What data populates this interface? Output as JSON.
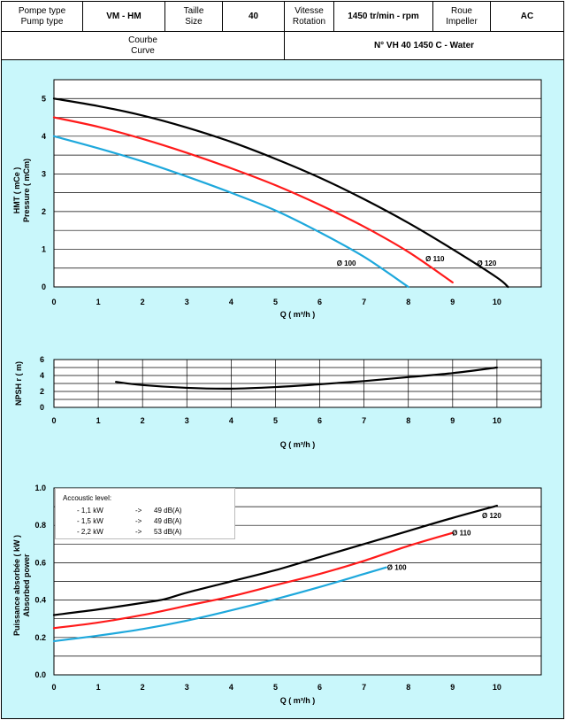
{
  "header": {
    "pump_type_label_fr": "Pompe type",
    "pump_type_label_en": "Pump type",
    "pump_type_value": "VM - HM",
    "size_label_fr": "Taille",
    "size_label_en": "Size",
    "size_value": "40",
    "rotation_label_fr": "Vitesse",
    "rotation_label_en": "Rotation",
    "rotation_value": "1450 tr/min - rpm",
    "impeller_label_fr": "Roue",
    "impeller_label_en": "Impeller",
    "impeller_value": "AC",
    "curve_label_fr": "Courbe",
    "curve_label_en": "Curve",
    "curve_value": "N° VH 40 1450 C - Water"
  },
  "colors": {
    "panel_bg": "#c9f7fb",
    "d120": "#000000",
    "d110": "#ff1a1a",
    "d100": "#1ea8dc"
  },
  "legend": {
    "title": "Accoustic level:",
    "rows": [
      {
        "power": "- 1,1 kW",
        "arrow": "->",
        "level": "49 dB(A)"
      },
      {
        "power": "- 1,5 kW",
        "arrow": "->",
        "level": "49 dB(A)"
      },
      {
        "power": "- 2,2 kW",
        "arrow": "->",
        "level": "53 dB(A)"
      }
    ]
  },
  "chart_data": [
    {
      "type": "line",
      "ylabel_line1": "HMT ( mCe )",
      "ylabel_line2": "Pressure ( mCm)",
      "xlabel": "Q ( m³/h )",
      "xlim": [
        0,
        11
      ],
      "ylim": [
        0,
        5.5
      ],
      "xticks": [
        0,
        1,
        2,
        3,
        4,
        5,
        6,
        7,
        8,
        9,
        10
      ],
      "yticks": [
        0,
        1,
        2,
        3,
        4,
        5
      ],
      "grid": "horizontal",
      "series": [
        {
          "name": "Ø 120",
          "color": "#000000",
          "x": [
            0,
            1,
            2,
            3,
            4,
            5,
            6,
            7,
            8,
            9,
            10,
            10.25
          ],
          "y": [
            5.0,
            4.8,
            4.55,
            4.23,
            3.85,
            3.4,
            2.9,
            2.33,
            1.7,
            1.0,
            0.25,
            0.0
          ]
        },
        {
          "name": "Ø 110",
          "color": "#ff1a1a",
          "x": [
            0,
            1,
            2,
            3,
            4,
            5,
            6,
            7,
            8,
            9
          ],
          "y": [
            4.5,
            4.25,
            3.93,
            3.56,
            3.15,
            2.7,
            2.18,
            1.6,
            0.93,
            0.12
          ]
        },
        {
          "name": "Ø 100",
          "color": "#1ea8dc",
          "x": [
            0,
            1,
            2,
            3,
            4,
            5,
            6,
            7,
            8
          ],
          "y": [
            4.0,
            3.68,
            3.33,
            2.93,
            2.5,
            2.03,
            1.45,
            0.8,
            0.0
          ]
        }
      ]
    },
    {
      "type": "line",
      "ylabel": "NPSH r ( m)",
      "xlabel": "Q ( m³/h )",
      "xlim": [
        0,
        11
      ],
      "ylim": [
        0,
        6
      ],
      "xticks": [
        0,
        1,
        2,
        3,
        4,
        5,
        6,
        7,
        8,
        9,
        10
      ],
      "yticks": [
        0,
        2,
        4,
        6
      ],
      "grid": "both",
      "series": [
        {
          "color": "#000000",
          "x": [
            1.4,
            2,
            3,
            4,
            5,
            6,
            7,
            8,
            9,
            10
          ],
          "y": [
            3.2,
            2.8,
            2.45,
            2.35,
            2.55,
            2.9,
            3.3,
            3.8,
            4.3,
            5.0
          ]
        }
      ]
    },
    {
      "type": "line",
      "ylabel_line1": "Puissance absorbée ( kW )",
      "ylabel_line2": "Absorbed power",
      "xlabel": "Q ( m³/h )",
      "xlim": [
        0,
        11
      ],
      "ylim": [
        0,
        1.0
      ],
      "xticks": [
        0,
        1,
        2,
        3,
        4,
        5,
        6,
        7,
        8,
        9,
        10
      ],
      "yticks": [
        "0.0",
        "0.2",
        "0.4",
        "0.6",
        "0.8",
        "1.0"
      ],
      "grid": "horizontal",
      "series": [
        {
          "name": "Ø 120",
          "color": "#000000",
          "x": [
            0,
            1,
            2,
            2.5,
            3,
            4,
            5,
            6,
            7,
            8,
            9,
            10
          ],
          "y": [
            0.32,
            0.35,
            0.385,
            0.405,
            0.44,
            0.5,
            0.56,
            0.63,
            0.7,
            0.77,
            0.84,
            0.905
          ]
        },
        {
          "name": "Ø 110",
          "color": "#ff1a1a",
          "x": [
            0,
            1,
            2,
            3,
            4,
            5,
            6,
            7,
            8,
            9
          ],
          "y": [
            0.25,
            0.28,
            0.32,
            0.37,
            0.42,
            0.48,
            0.54,
            0.61,
            0.69,
            0.76
          ]
        },
        {
          "name": "Ø 100",
          "color": "#1ea8dc",
          "x": [
            0,
            1,
            2,
            3,
            4,
            5,
            6,
            7,
            7.5
          ],
          "y": [
            0.18,
            0.21,
            0.245,
            0.29,
            0.345,
            0.405,
            0.47,
            0.54,
            0.575
          ]
        }
      ]
    }
  ]
}
